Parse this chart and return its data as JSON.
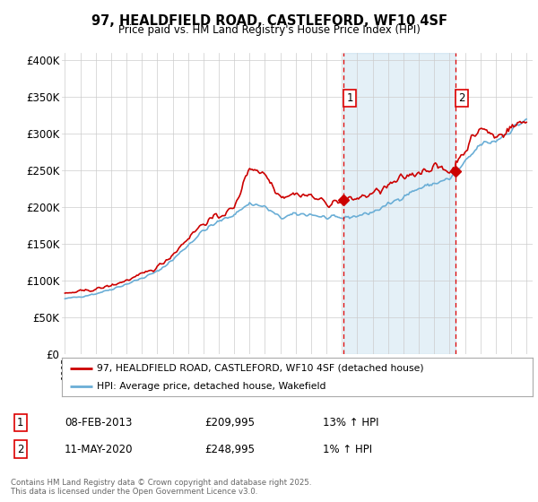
{
  "title": "97, HEALDFIELD ROAD, CASTLEFORD, WF10 4SF",
  "subtitle": "Price paid vs. HM Land Registry's House Price Index (HPI)",
  "ylabel_ticks": [
    "£0",
    "£50K",
    "£100K",
    "£150K",
    "£200K",
    "£250K",
    "£300K",
    "£350K",
    "£400K"
  ],
  "ytick_vals": [
    0,
    50000,
    100000,
    150000,
    200000,
    250000,
    300000,
    350000,
    400000
  ],
  "ylim": [
    0,
    410000
  ],
  "legend_line1": "97, HEALDFIELD ROAD, CASTLEFORD, WF10 4SF (detached house)",
  "legend_line2": "HPI: Average price, detached house, Wakefield",
  "annotation1_date": "08-FEB-2013",
  "annotation1_price": "£209,995",
  "annotation1_hpi": "13% ↑ HPI",
  "annotation2_date": "11-MAY-2020",
  "annotation2_price": "£248,995",
  "annotation2_hpi": "1% ↑ HPI",
  "footnote": "Contains HM Land Registry data © Crown copyright and database right 2025.\nThis data is licensed under the Open Government Licence v3.0.",
  "line_color_red": "#cc0000",
  "line_color_blue": "#6aaed6",
  "fill_color_blue": "#ddeeff",
  "annotation_vline_color": "#dd0000",
  "background_color": "#ffffff",
  "grid_color": "#cccccc",
  "sale1_x": 2013.1,
  "sale1_y": 209995,
  "sale2_x": 2020.37,
  "sale2_y": 248995,
  "xlim_left": 1994.8,
  "xlim_right": 2025.4
}
